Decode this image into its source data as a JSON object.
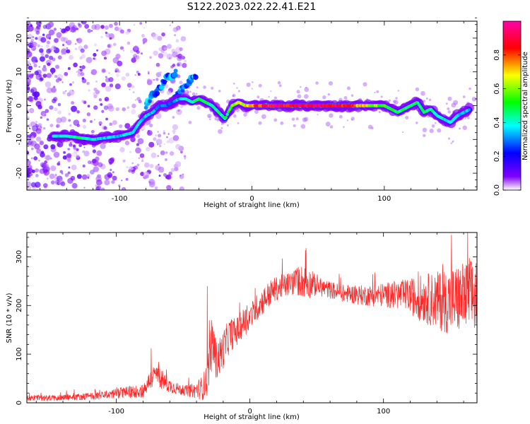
{
  "title": "S122.2023.022.22.41.E21",
  "chart_data": [
    {
      "type": "heatmap",
      "xlabel": "Height of straight line (km)",
      "ylabel": "Frequency (Hz)",
      "xlim": [
        -170,
        170
      ],
      "ylim": [
        -25,
        25
      ],
      "x_ticks": [
        -100,
        0,
        100
      ],
      "y_ticks": [
        -20,
        -10,
        0,
        10,
        20
      ],
      "colorbar": {
        "label": "Normalized spectral amplitude",
        "range": [
          0,
          1
        ],
        "ticks": [
          "0.0",
          "0.2",
          "0.4",
          "0.6",
          "0.8"
        ],
        "colors": [
          "#ffffff",
          "#7f00ff",
          "#0000ff",
          "#00ffff",
          "#00ff00",
          "#ffff00",
          "#ff0000",
          "#ff00ff"
        ]
      },
      "ridge": {
        "x": [
          -150,
          -140,
          -130,
          -120,
          -110,
          -100,
          -95,
          -90,
          -85,
          -80,
          -75,
          -70,
          -65,
          -60,
          -55,
          -50,
          -45,
          -40,
          -35,
          -30,
          -25,
          -20,
          -18,
          -15,
          -10,
          -5,
          0,
          10,
          20,
          30,
          40,
          50,
          60,
          70,
          80,
          90,
          100,
          105,
          110,
          115,
          120,
          125,
          130,
          135,
          140,
          145,
          150,
          155,
          160,
          165
        ],
        "y": [
          -9,
          -9,
          -9.5,
          -10,
          -9.5,
          -9,
          -8.5,
          -8,
          -5,
          -3,
          -2,
          0,
          0,
          1,
          2,
          2,
          1,
          2,
          1,
          0,
          -2,
          -4,
          -2,
          0,
          1,
          0,
          0,
          0,
          0,
          0,
          0,
          0,
          0,
          0,
          0,
          0,
          0,
          -1,
          -2,
          -1,
          0,
          1,
          -2,
          -1,
          -3,
          -4,
          -5,
          -3,
          -2,
          -1
        ],
        "intensity": [
          0.4,
          0.4,
          0.45,
          0.4,
          0.35,
          0.35,
          0.4,
          0.4,
          0.35,
          0.35,
          0.35,
          0.3,
          0.3,
          0.3,
          0.35,
          0.4,
          0.45,
          0.5,
          0.5,
          0.45,
          0.45,
          0.45,
          0.5,
          0.6,
          0.65,
          0.7,
          0.8,
          0.9,
          0.95,
          0.9,
          0.95,
          0.95,
          0.95,
          0.9,
          0.75,
          0.65,
          0.55,
          0.5,
          0.5,
          0.45,
          0.45,
          0.5,
          0.5,
          0.45,
          0.45,
          0.4,
          0.4,
          0.35,
          0.35,
          0.35
        ]
      },
      "secondary_ridges": [
        {
          "x": [
            -80,
            -75,
            -70,
            -65,
            -60,
            -57
          ],
          "y": [
            0,
            3,
            5,
            8,
            9,
            10
          ]
        },
        {
          "x": [
            -60,
            -55,
            -50,
            -45,
            -42
          ],
          "y": [
            1,
            4,
            6,
            8,
            9
          ]
        }
      ]
    },
    {
      "type": "line",
      "color": "#ff0000",
      "xlabel": "Height of straight line (km)",
      "ylabel": "SNR (10 * v/v)",
      "xlim": [
        -167,
        170
      ],
      "ylim": [
        0,
        350
      ],
      "x_ticks": [
        -100,
        0,
        100
      ],
      "y_ticks": [
        0,
        100,
        200,
        300
      ],
      "envelope": {
        "x": [
          -167,
          -150,
          -130,
          -110,
          -100,
          -90,
          -80,
          -75,
          -70,
          -65,
          -60,
          -50,
          -42,
          -36,
          -32,
          -30,
          -28,
          -25,
          -20,
          -15,
          -10,
          -5,
          0,
          5,
          10,
          15,
          20,
          25,
          30,
          35,
          40,
          45,
          50,
          60,
          70,
          80,
          90,
          100,
          110,
          120,
          125,
          130,
          140,
          150,
          160,
          170
        ],
        "mean": [
          10,
          10,
          12,
          15,
          20,
          22,
          25,
          45,
          60,
          45,
          35,
          25,
          25,
          30,
          45,
          100,
          125,
          85,
          110,
          140,
          145,
          165,
          175,
          195,
          210,
          225,
          235,
          240,
          245,
          250,
          250,
          245,
          240,
          232,
          225,
          222,
          220,
          222,
          222,
          220,
          215,
          215,
          210,
          210,
          215,
          220
        ],
        "spread": [
          6,
          6,
          7,
          8,
          12,
          12,
          15,
          20,
          25,
          20,
          15,
          10,
          15,
          25,
          35,
          50,
          55,
          40,
          40,
          35,
          30,
          30,
          28,
          28,
          28,
          28,
          25,
          25,
          25,
          30,
          35,
          30,
          20,
          18,
          18,
          20,
          22,
          25,
          30,
          35,
          45,
          50,
          60,
          70,
          75,
          80
        ]
      },
      "peaks": [
        {
          "x": -32,
          "y": 240
        },
        {
          "x": -74,
          "y": 112
        },
        {
          "x": 42,
          "y": 318
        },
        {
          "x": 151,
          "y": 345
        },
        {
          "x": 163,
          "y": 350
        }
      ]
    }
  ]
}
